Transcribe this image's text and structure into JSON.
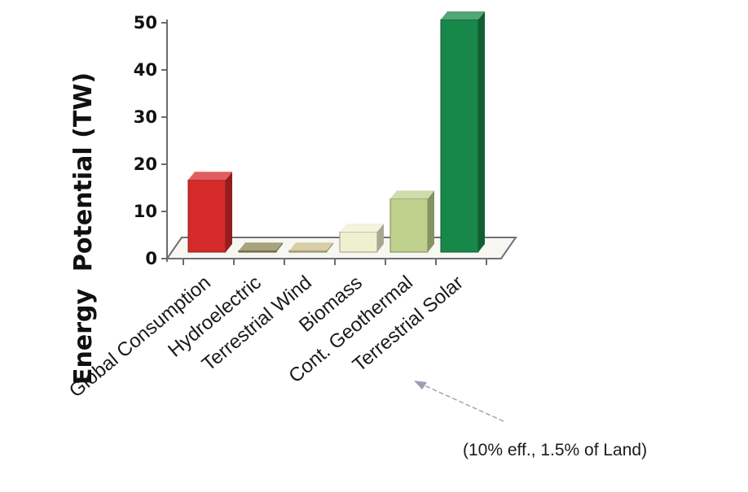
{
  "chart_data": {
    "type": "bar",
    "ylabel": "Energy  Potential (TW)",
    "xlabel": "",
    "categories": [
      "Global Consumption",
      "Hydroelectric",
      "Terrestrial Wind",
      "Biomass",
      "Cont. Geothermal",
      "Terrestrial Solar"
    ],
    "values": [
      16,
      1,
      1,
      5,
      12,
      50
    ],
    "ylim": [
      0,
      50
    ],
    "yticks": [
      0,
      10,
      20,
      30,
      40,
      50
    ],
    "grid": false,
    "colors": [
      "#d42a2a",
      "#8b8352",
      "#c9bc8a",
      "#eef0cf",
      "#bfd08c",
      "#18884a"
    ],
    "annotation": "(10% eff., 1.5% of Land)"
  }
}
